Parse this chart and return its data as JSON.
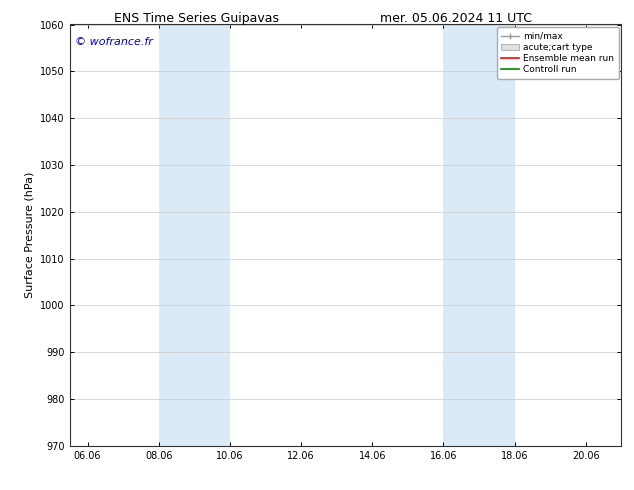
{
  "title_left": "ENS Time Series Guipavas",
  "title_right": "mer. 05.06.2024 11 UTC",
  "ylabel": "Surface Pressure (hPa)",
  "ylim": [
    970,
    1060
  ],
  "yticks": [
    970,
    980,
    990,
    1000,
    1010,
    1020,
    1030,
    1040,
    1050,
    1060
  ],
  "xtick_labels": [
    "06.06",
    "08.06",
    "10.06",
    "12.06",
    "14.06",
    "16.06",
    "18.06",
    "20.06"
  ],
  "xtick_positions": [
    0,
    2,
    4,
    6,
    8,
    10,
    12,
    14
  ],
  "xlim": [
    -0.5,
    15.0
  ],
  "watermark": "© wofrance.fr",
  "watermark_color": "#0000cc",
  "shaded_bands": [
    {
      "xmin": 2,
      "xmax": 4
    },
    {
      "xmin": 10,
      "xmax": 12
    }
  ],
  "shaded_color": "#daeaf7",
  "legend_labels": [
    "min/max",
    "acute;cart type",
    "Ensemble mean run",
    "Controll run"
  ],
  "legend_line_colors": [
    "#999999",
    "#cccccc",
    "#ff0000",
    "#008800"
  ],
  "background_color": "#ffffff",
  "grid_color": "#cccccc",
  "title_fontsize": 9,
  "tick_fontsize": 7,
  "ylabel_fontsize": 8,
  "watermark_fontsize": 8,
  "legend_fontsize": 6.5
}
